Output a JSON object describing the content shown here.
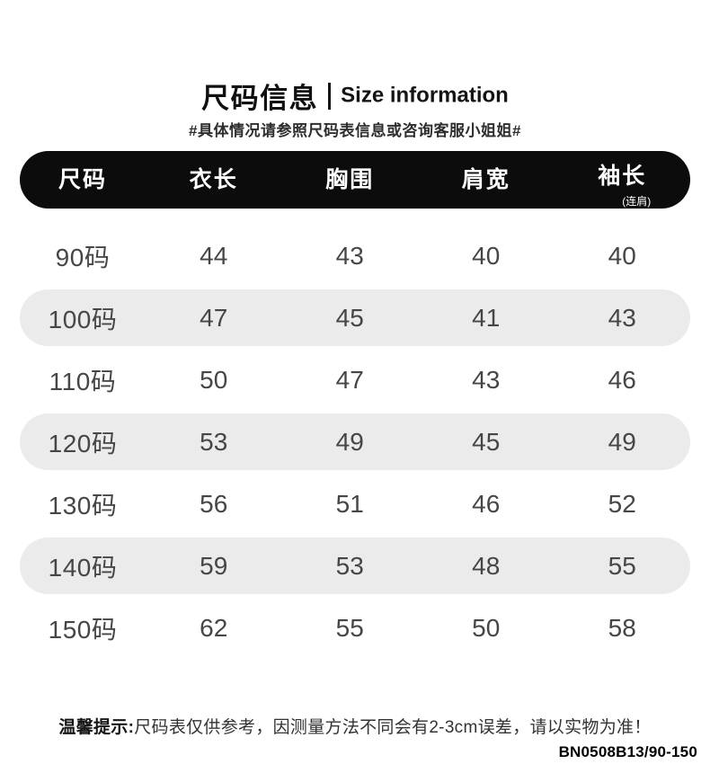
{
  "header": {
    "title_zh": "尺码信息",
    "title_en": "Size information",
    "subtitle": "#具体情况请参照尺码表信息或咨询客服小姐姐#"
  },
  "table": {
    "columns": [
      {
        "label": "尺码",
        "sub": ""
      },
      {
        "label": "衣长",
        "sub": ""
      },
      {
        "label": "胸围",
        "sub": ""
      },
      {
        "label": "肩宽",
        "sub": ""
      },
      {
        "label": "袖长",
        "sub": "(连肩)"
      }
    ],
    "rows": [
      {
        "size": "90码",
        "values": [
          "44",
          "43",
          "40",
          "40"
        ],
        "shaded": false
      },
      {
        "size": "100码",
        "values": [
          "47",
          "45",
          "41",
          "43"
        ],
        "shaded": true
      },
      {
        "size": "110码",
        "values": [
          "50",
          "47",
          "43",
          "46"
        ],
        "shaded": false
      },
      {
        "size": "120码",
        "values": [
          "53",
          "49",
          "45",
          "49"
        ],
        "shaded": true
      },
      {
        "size": "130码",
        "values": [
          "56",
          "51",
          "46",
          "52"
        ],
        "shaded": false
      },
      {
        "size": "140码",
        "values": [
          "59",
          "53",
          "48",
          "55"
        ],
        "shaded": true
      },
      {
        "size": "150码",
        "values": [
          "62",
          "55",
          "50",
          "58"
        ],
        "shaded": false
      }
    ]
  },
  "footer": {
    "note_prefix": "温馨提示:",
    "note_text": "尺码表仅供参考，因测量方法不同会有2-3cm误差，请以实物为准！",
    "product_code": "BN0508B13/90-150"
  },
  "colors": {
    "page_bg": "#ffffff",
    "header_bg": "#0c0c0c",
    "header_text": "#ffffff",
    "row_shaded_bg": "#ebebeb",
    "row_text": "#464646"
  }
}
